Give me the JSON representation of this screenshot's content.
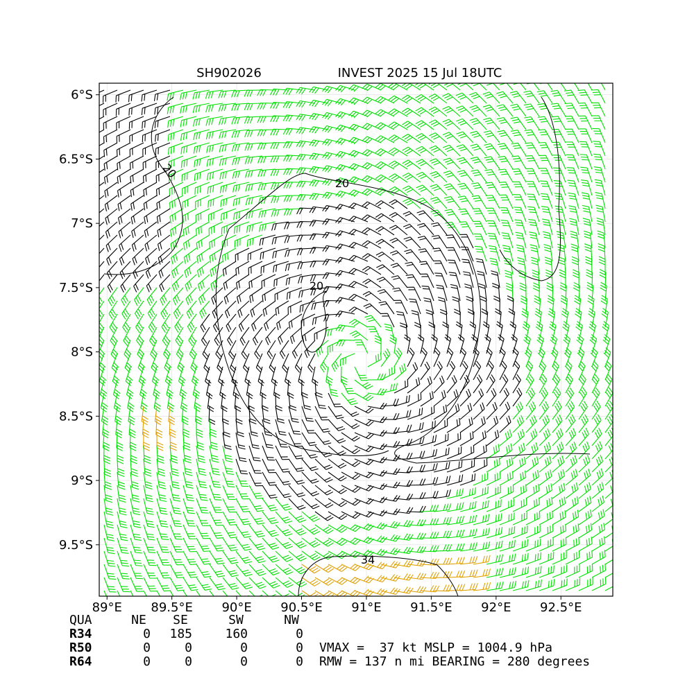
{
  "title_left": "SH902026",
  "title_right": "INVEST 2025 15 Jul 18UTC",
  "xlim": [
    88.94,
    92.9
  ],
  "ylim": [
    -9.9,
    -5.91
  ],
  "xticks": [
    {
      "value": 89,
      "label": "89°E"
    },
    {
      "value": 89.5,
      "label": "89.5°E"
    },
    {
      "value": 90,
      "label": "90°E"
    },
    {
      "value": 90.5,
      "label": "90.5°E"
    },
    {
      "value": 91,
      "label": "91°E"
    },
    {
      "value": 91.5,
      "label": "91.5°E"
    },
    {
      "value": 92,
      "label": "92°E"
    },
    {
      "value": 92.5,
      "label": "92.5°E"
    }
  ],
  "yticks": [
    {
      "value": -6,
      "label": "6°S"
    },
    {
      "value": -6.5,
      "label": "6.5°S"
    },
    {
      "value": -7,
      "label": "7°S"
    },
    {
      "value": -7.5,
      "label": "7.5°S"
    },
    {
      "value": -8,
      "label": "8°S"
    },
    {
      "value": -8.5,
      "label": "8.5°S"
    },
    {
      "value": -9,
      "label": "9°S"
    },
    {
      "value": -9.5,
      "label": "9.5°S"
    }
  ],
  "contour_labels": [
    "20",
    "20",
    "20",
    "34"
  ],
  "table": {
    "header": [
      "QUA",
      "NE",
      "SE",
      "SW",
      "NW"
    ],
    "rows": [
      [
        "R34",
        "0",
        "185",
        "160",
        "0"
      ],
      [
        "R50",
        "0",
        "0",
        "0",
        "0"
      ],
      [
        "R64",
        "0",
        "0",
        "0",
        "0"
      ]
    ]
  },
  "info": [
    "VMAX =  37 kt MSLP = 1004.9 hPa",
    "RMW = 137 n mi BEARING = 280 degrees"
  ]
}
